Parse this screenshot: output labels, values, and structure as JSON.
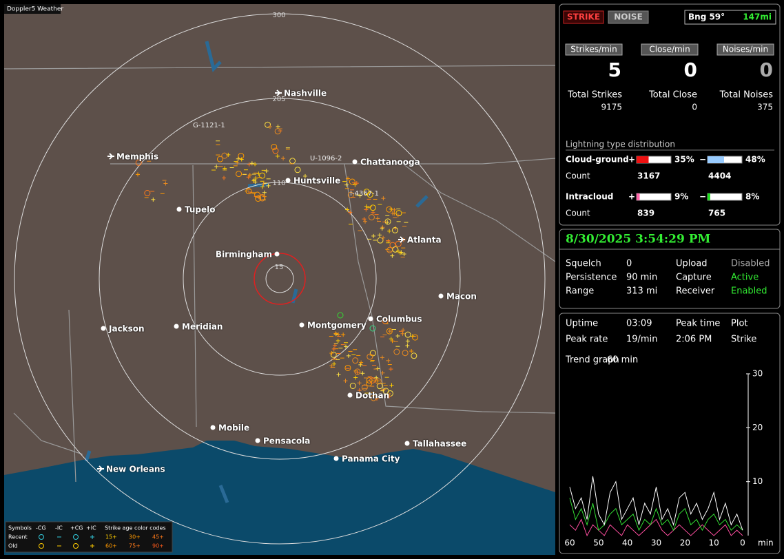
{
  "map": {
    "title": "Doppler5 Weather",
    "range_labels": [
      "300",
      "205",
      "110",
      "15"
    ],
    "cities": [
      "Nashville",
      "Chattanooga",
      "Memphis",
      "Huntsville",
      "Tupelo",
      "Atlanta",
      "Birmingham",
      "Macon",
      "Jackson",
      "Meridian",
      "Montgomery",
      "Columbus",
      "Dothan",
      "Mobile",
      "Pensacola",
      "Tallahassee",
      "Panama City",
      "New Orleans"
    ],
    "storm_ids": [
      "G-1121-1",
      "U-1096-2",
      "I-4367-1"
    ],
    "legend": {
      "headers": [
        "Symbols",
        "-CG",
        "-IC",
        "+CG",
        "+IC",
        "Strike age color codes"
      ],
      "rows": [
        {
          "label": "Recent",
          "ages": [
            "15+",
            "30+",
            "45+"
          ]
        },
        {
          "label": "Old",
          "ages": [
            "60+",
            "75+",
            "90+"
          ]
        }
      ]
    }
  },
  "controls": {
    "strike": "STRIKE",
    "noise": "NOISE",
    "bearing": "Bng 59°",
    "distance": "147mi"
  },
  "rates": [
    {
      "label": "Strikes/min",
      "value": 5
    },
    {
      "label": "Close/min",
      "value": 0
    },
    {
      "label": "Noises/min",
      "value": 0
    }
  ],
  "totals": [
    {
      "label": "Total Strikes",
      "value": 9175
    },
    {
      "label": "Total Close",
      "value": 0
    },
    {
      "label": "Total Noises",
      "value": 375
    }
  ],
  "distribution": {
    "title": "Lightning type distribution",
    "count_label": "Count",
    "types": [
      {
        "label": "Cloud-ground",
        "positive": {
          "sign": "+",
          "percent": 35,
          "percent_label": "35%",
          "count": 3167
        },
        "negative": {
          "sign": "−",
          "percent": 48,
          "percent_label": "48%",
          "count": 4404
        }
      },
      {
        "label": "Intracloud",
        "positive": {
          "sign": "+",
          "percent": 9,
          "percent_label": "9%",
          "count": 839
        },
        "negative": {
          "sign": "−",
          "percent": 8,
          "percent_label": "8%",
          "count": 765
        }
      }
    ]
  },
  "status": {
    "datetime": "8/30/2025 3:54:29 PM",
    "rows": [
      [
        "Squelch",
        "0",
        "Upload",
        "Disabled"
      ],
      [
        "Persistence",
        "90 min",
        "Capture",
        "Active"
      ],
      [
        "Range",
        "313 mi",
        "Receiver",
        "Enabled"
      ]
    ]
  },
  "stats": {
    "rows": [
      [
        "Uptime",
        "03:09",
        "Peak time",
        "Plot"
      ],
      [
        "Peak rate",
        "19/min",
        "2:06 PM",
        "Strike"
      ],
      [
        "Trend graph",
        "60 min"
      ]
    ]
  },
  "trend_graph": {
    "type": "line",
    "x_label": "min",
    "xlim": [
      60,
      0
    ],
    "ylim": [
      0,
      30
    ],
    "yticks": [
      10,
      20,
      30
    ],
    "xticks": [
      60,
      50,
      40,
      30,
      20,
      10,
      0
    ],
    "x": [
      60,
      58,
      56,
      54,
      52,
      50,
      48,
      46,
      44,
      42,
      40,
      38,
      36,
      34,
      32,
      30,
      28,
      26,
      24,
      22,
      20,
      18,
      16,
      14,
      12,
      10,
      8,
      6,
      4,
      2,
      0
    ],
    "series": [
      {
        "color": "#ffffff",
        "values": [
          9,
          5,
          7,
          3,
          11,
          4,
          2,
          8,
          10,
          3,
          5,
          7,
          2,
          6,
          4,
          9,
          3,
          5,
          2,
          7,
          8,
          4,
          6,
          3,
          5,
          8,
          3,
          6,
          2,
          4,
          1
        ]
      },
      {
        "color": "#33dd33",
        "values": [
          7,
          3,
          5,
          2,
          6,
          1,
          2,
          4,
          5,
          2,
          3,
          4,
          1,
          3,
          2,
          5,
          2,
          3,
          1,
          4,
          5,
          2,
          3,
          1,
          3,
          4,
          2,
          3,
          1,
          2,
          1
        ]
      },
      {
        "color": "#ff4fa0",
        "values": [
          2,
          1,
          3,
          0,
          2,
          1,
          0,
          2,
          1,
          0,
          2,
          1,
          0,
          1,
          2,
          3,
          1,
          0,
          1,
          2,
          1,
          0,
          1,
          2,
          1,
          0,
          1,
          2,
          0,
          1,
          0
        ]
      }
    ]
  }
}
